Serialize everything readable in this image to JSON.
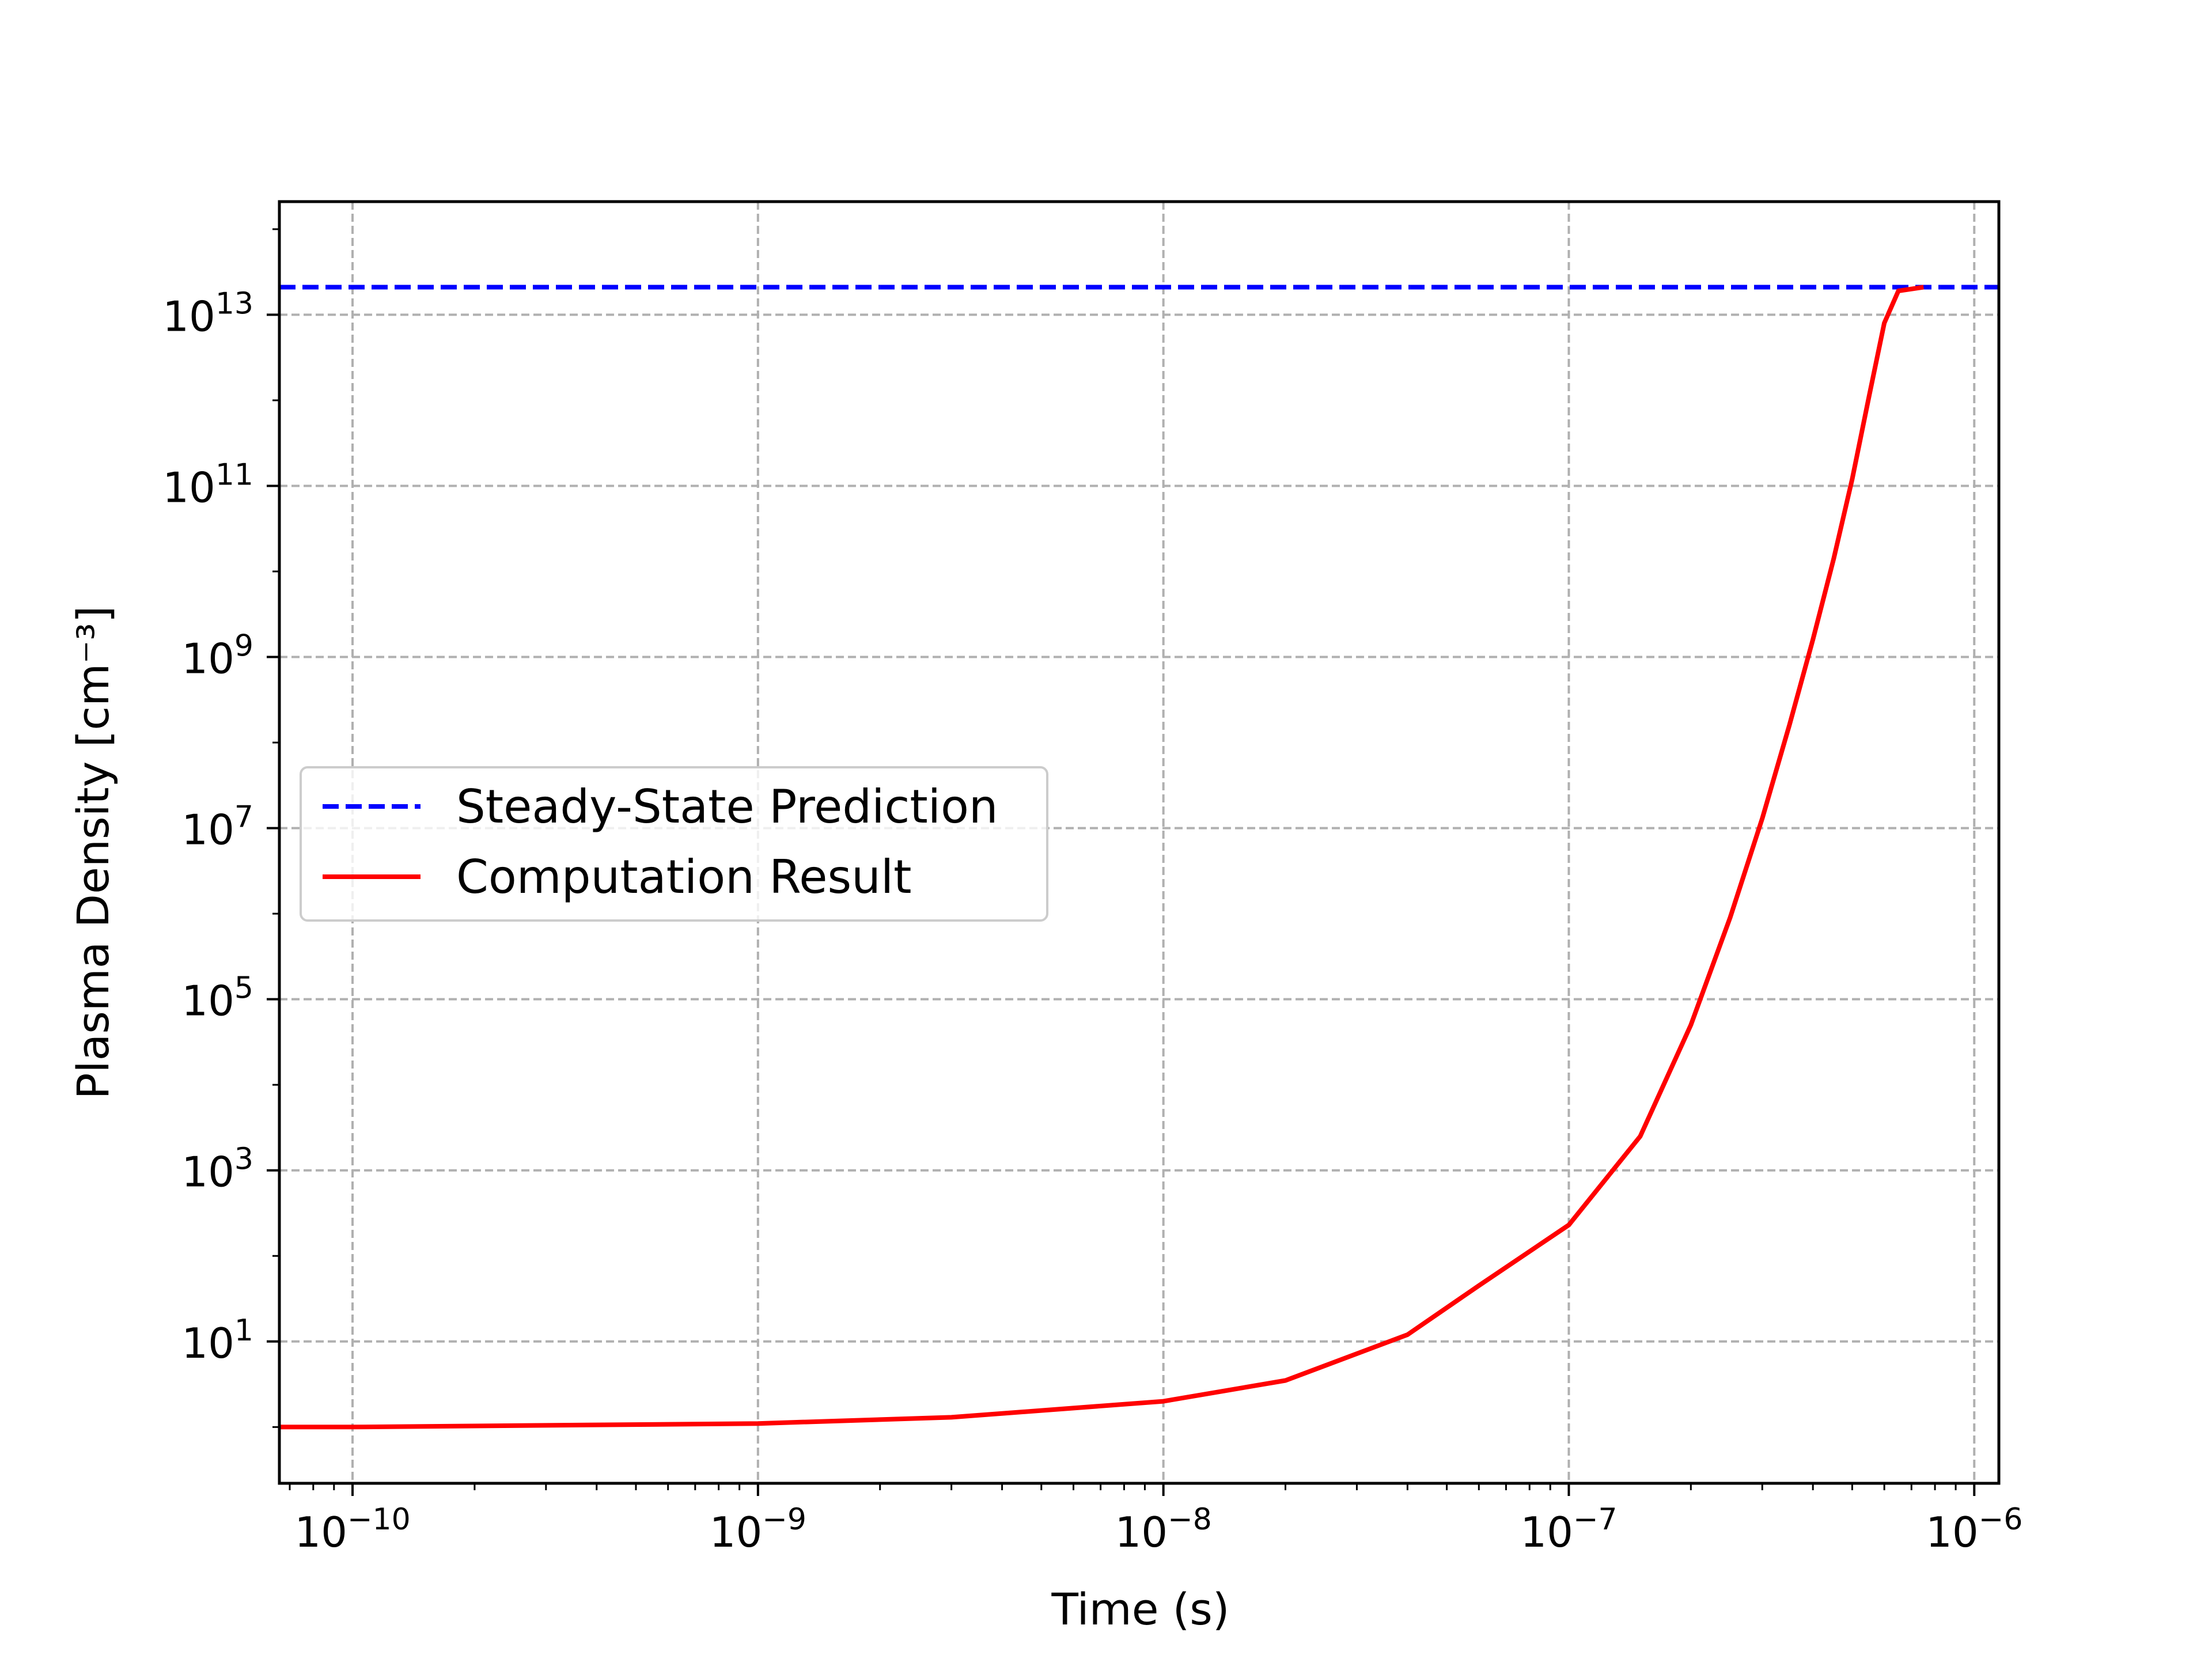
{
  "chart_data": {
    "type": "line",
    "title": "",
    "xlabel": "Time (s)",
    "ylabel": "Plasma Density [cm⁻³]",
    "x_scale": "log",
    "y_scale": "log",
    "xlim": [
      6.6e-11,
      1.15e-06
    ],
    "ylim": [
      0.22,
      210000000000000.0
    ],
    "grid": true,
    "legend_position": "center-left",
    "x_ticks": [
      {
        "value": 1e-10,
        "base": "10",
        "exp": "−10"
      },
      {
        "value": 1e-09,
        "base": "10",
        "exp": "−9"
      },
      {
        "value": 1e-08,
        "base": "10",
        "exp": "−8"
      },
      {
        "value": 1e-07,
        "base": "10",
        "exp": "−7"
      },
      {
        "value": 1e-06,
        "base": "10",
        "exp": "−6"
      }
    ],
    "y_ticks": [
      {
        "value": 10,
        "base": "10",
        "exp": "1"
      },
      {
        "value": 1000.0,
        "base": "10",
        "exp": "3"
      },
      {
        "value": 100000.0,
        "base": "10",
        "exp": "5"
      },
      {
        "value": 10000000.0,
        "base": "10",
        "exp": "7"
      },
      {
        "value": 1000000000.0,
        "base": "10",
        "exp": "9"
      },
      {
        "value": 100000000000.0,
        "base": "10",
        "exp": "11"
      },
      {
        "value": 10000000000000.0,
        "base": "10",
        "exp": "13"
      }
    ],
    "series": [
      {
        "name": "Steady-State Prediction",
        "color": "#0000ff",
        "style": "dashed",
        "x": [
          6.6e-11,
          1.15e-06
        ],
        "y": [
          21000000000000.0,
          21000000000000.0
        ]
      },
      {
        "name": "Computation Result",
        "color": "#ff0000",
        "style": "solid",
        "x": [
          6.6e-11,
          1e-10,
          1e-09,
          3e-09,
          1e-08,
          2e-08,
          4e-08,
          6e-08,
          1e-07,
          1.5e-07,
          2e-07,
          2.5e-07,
          3e-07,
          3.5e-07,
          4e-07,
          4.5e-07,
          5e-07,
          5.5e-07,
          6e-07,
          6.5e-07,
          7.5e-07
        ],
        "y": [
          1,
          1,
          1.1,
          1.3,
          2,
          3.5,
          12,
          45,
          230,
          2500,
          50000.0,
          900000.0,
          13000000.0,
          160000000.0,
          1600000000.0,
          14000000000.0,
          120000000000.0,
          1100000000000.0,
          8000000000000.0,
          19000000000000.0,
          21000000000000.0
        ]
      }
    ]
  }
}
